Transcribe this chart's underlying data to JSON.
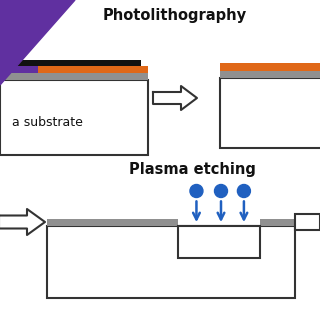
{
  "bg_color": "#ffffff",
  "photolith_label": "Photolithography",
  "plasma_label": "Plasma etching",
  "substrate_label": "a substrate",
  "colors": {
    "purple": "#6030A0",
    "orange": "#E06818",
    "black_layer": "#111111",
    "gray_layer": "#909090",
    "white": "#ffffff",
    "arrow_blue": "#2060C0",
    "outline": "#333333"
  },
  "title_fontsize": 10.5,
  "label_fontsize": 9
}
